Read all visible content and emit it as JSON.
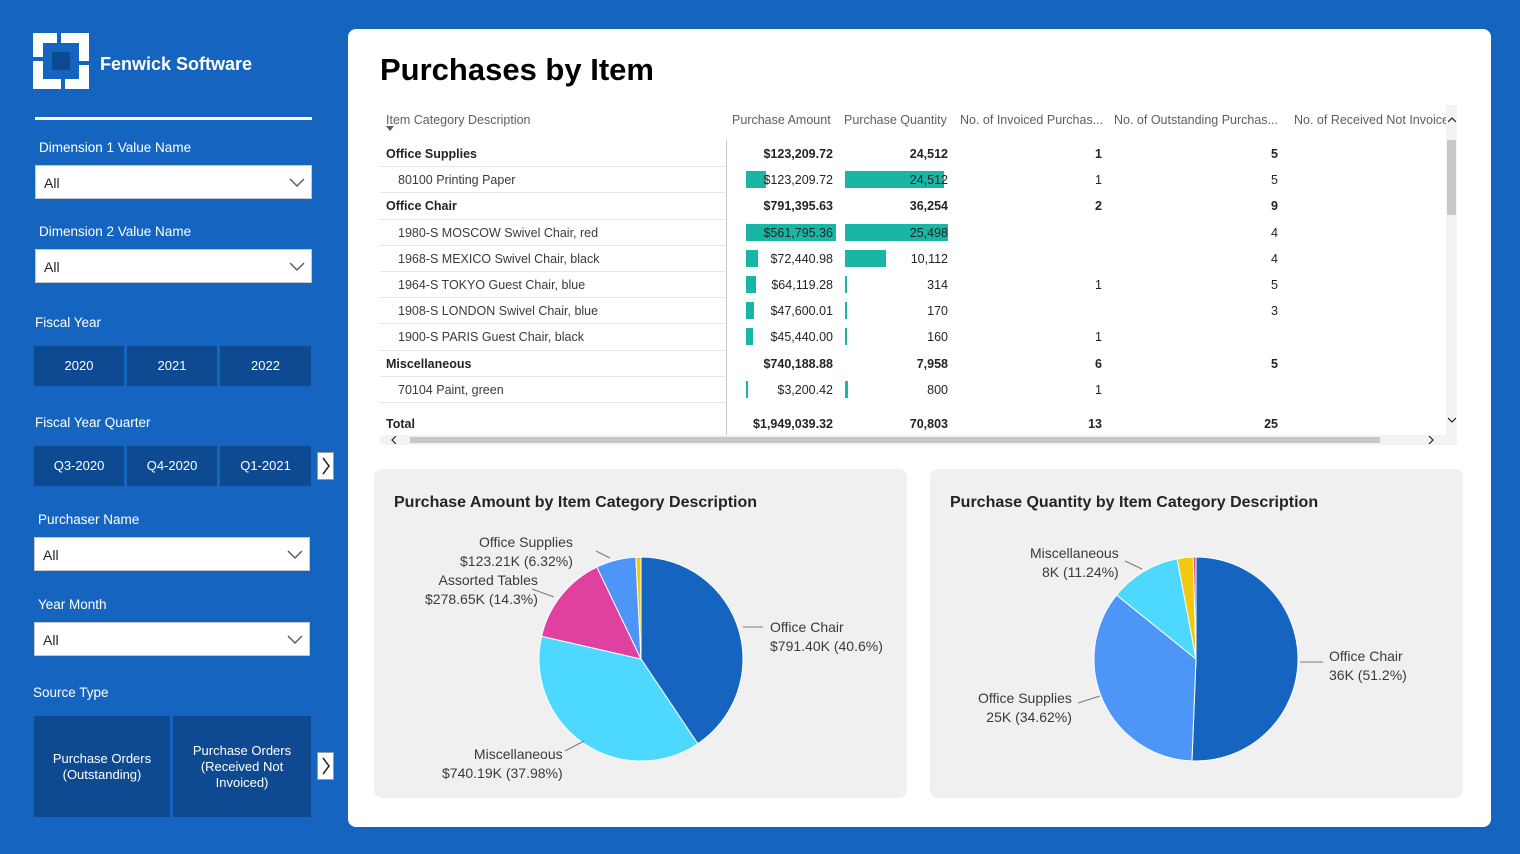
{
  "brand": {
    "name": "Fenwick Software"
  },
  "filters": {
    "dim1": {
      "label": "Dimension 1 Value Name",
      "value": "All"
    },
    "dim2": {
      "label": "Dimension 2 Value Name",
      "value": "All"
    },
    "fiscal_year": {
      "label": "Fiscal Year",
      "options": [
        "2020",
        "2021",
        "2022"
      ]
    },
    "fiscal_quarter": {
      "label": "Fiscal Year Quarter",
      "options": [
        "Q3-2020",
        "Q4-2020",
        "Q1-2021"
      ]
    },
    "purchaser": {
      "label": "Purchaser Name",
      "value": "All"
    },
    "year_month": {
      "label": "Year Month",
      "value": "All"
    },
    "source_type": {
      "label": "Source Type",
      "options": [
        "Purchase Orders (Outstanding)",
        "Purchase Orders (Received Not Invoiced)"
      ]
    }
  },
  "page": {
    "title": "Purchases by Item"
  },
  "table": {
    "headers": [
      "Item Category Description",
      "Purchase Amount",
      "Purchase Quantity",
      "No. of Invoiced Purchas...",
      "No. of Outstanding Purchas...",
      "No. of Received Not Invoice"
    ],
    "rows": [
      {
        "type": "cat",
        "name": "Office Supplies",
        "amount": "$123,209.72",
        "qty": "24,512",
        "invoiced": "1",
        "outstanding": "5"
      },
      {
        "type": "item",
        "name": "80100 Printing Paper",
        "amount": "$123,209.72",
        "qty": "24,512",
        "invoiced": "1",
        "outstanding": "5",
        "amount_value": 123209.72,
        "qty_value": 24512
      },
      {
        "type": "cat",
        "name": "Office Chair",
        "amount": "$791,395.63",
        "qty": "36,254",
        "invoiced": "2",
        "outstanding": "9"
      },
      {
        "type": "item",
        "name": "1980-S MOSCOW Swivel Chair, red",
        "amount": "$561,795.36",
        "qty": "25,498",
        "invoiced": "",
        "outstanding": "4",
        "amount_value": 561795.36,
        "qty_value": 25498
      },
      {
        "type": "item",
        "name": "1968-S MEXICO Swivel Chair, black",
        "amount": "$72,440.98",
        "qty": "10,112",
        "invoiced": "",
        "outstanding": "4",
        "amount_value": 72440.98,
        "qty_value": 10112
      },
      {
        "type": "item",
        "name": "1964-S TOKYO Guest Chair, blue",
        "amount": "$64,119.28",
        "qty": "314",
        "invoiced": "1",
        "outstanding": "5",
        "amount_value": 64119.28,
        "qty_value": 314
      },
      {
        "type": "item",
        "name": "1908-S LONDON Swivel Chair, blue",
        "amount": "$47,600.01",
        "qty": "170",
        "invoiced": "",
        "outstanding": "3",
        "amount_value": 47600.01,
        "qty_value": 170
      },
      {
        "type": "item",
        "name": "1900-S PARIS Guest Chair, black",
        "amount": "$45,440.00",
        "qty": "160",
        "invoiced": "1",
        "outstanding": "",
        "amount_value": 45440.0,
        "qty_value": 160
      },
      {
        "type": "cat",
        "name": "Miscellaneous",
        "amount": "$740,188.88",
        "qty": "7,958",
        "invoiced": "6",
        "outstanding": "5"
      },
      {
        "type": "item",
        "name": "70104 Paint, green",
        "amount": "$3,200.42",
        "qty": "800",
        "invoiced": "1",
        "outstanding": "",
        "amount_value": 3200.42,
        "qty_value": 800
      }
    ],
    "total": {
      "name": "Total",
      "amount": "$1,949,039.32",
      "qty": "70,803",
      "invoiced": "13",
      "outstanding": "25"
    },
    "bar_color": "#19b5a5",
    "amount_max": 561795.36,
    "qty_max": 25498
  },
  "chart_data": [
    {
      "type": "pie",
      "title": "Purchase Amount by Item Category Description",
      "slices": [
        {
          "name": "Office Chair",
          "value": 791.4,
          "percent": 40.6,
          "label_value": "$791.40K (40.6%)",
          "color": "#1565c0"
        },
        {
          "name": "Miscellaneous",
          "value": 740.19,
          "percent": 37.98,
          "label_value": "$740.19K (37.98%)",
          "color": "#4dd9ff"
        },
        {
          "name": "Assorted Tables",
          "value": 278.65,
          "percent": 14.3,
          "label_value": "$278.65K (14.3%)",
          "color": "#e040a0"
        },
        {
          "name": "Office Supplies",
          "value": 123.21,
          "percent": 6.32,
          "label_value": "$123.21K (6.32%)",
          "color": "#4d96f7"
        },
        {
          "name": "",
          "value": 15.6,
          "percent": 0.8,
          "label_value": "",
          "color": "#f2c811"
        }
      ]
    },
    {
      "type": "pie",
      "title": "Purchase Quantity by Item Category Description",
      "slices": [
        {
          "name": "Office Chair",
          "value": 36,
          "percent": 51.2,
          "label_value": "36K (51.2%)",
          "color": "#1565c0"
        },
        {
          "name": "Office Supplies",
          "value": 25,
          "percent": 34.62,
          "label_value": "25K (34.62%)",
          "color": "#4d96f7"
        },
        {
          "name": "Miscellaneous",
          "value": 8,
          "percent": 11.24,
          "label_value": "8K (11.24%)",
          "color": "#4dd9ff"
        },
        {
          "name": "",
          "value": 1.8,
          "percent": 2.5,
          "label_value": "",
          "color": "#f2c811"
        },
        {
          "name": "",
          "value": 0.3,
          "percent": 0.44,
          "label_value": "",
          "color": "#e040a0"
        }
      ]
    }
  ]
}
